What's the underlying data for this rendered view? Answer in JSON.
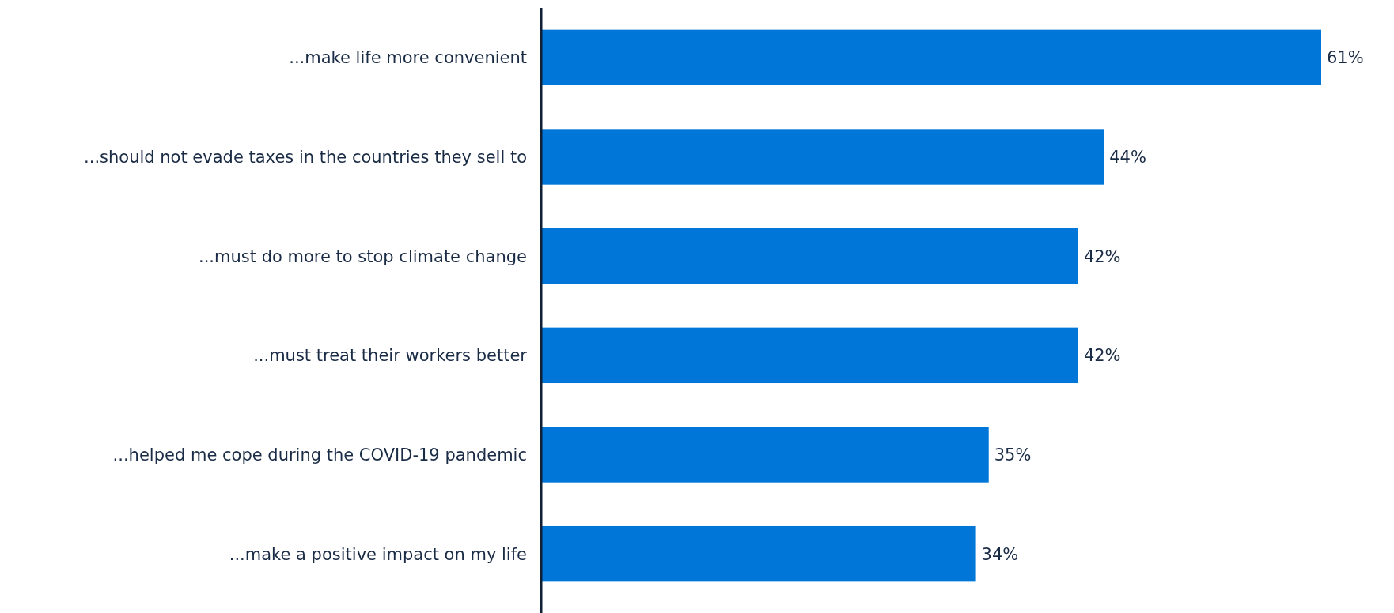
{
  "chart_data": {
    "type": "bar",
    "orientation": "horizontal",
    "categories": [
      "...make life more convenient",
      "...should not evade taxes in the countries they sell to",
      "...must do more to stop climate change",
      "...must treat their workers better",
      "...helped me cope during the COVID-19 pandemic",
      "...make a positive impact on my life"
    ],
    "values": [
      61,
      44,
      42,
      42,
      35,
      34
    ],
    "value_labels": [
      "61%",
      "44%",
      "42%",
      "42%",
      "35%",
      "34%"
    ],
    "color": "#0077d8",
    "xlim": [
      0,
      61
    ],
    "tick_labels": "y"
  }
}
